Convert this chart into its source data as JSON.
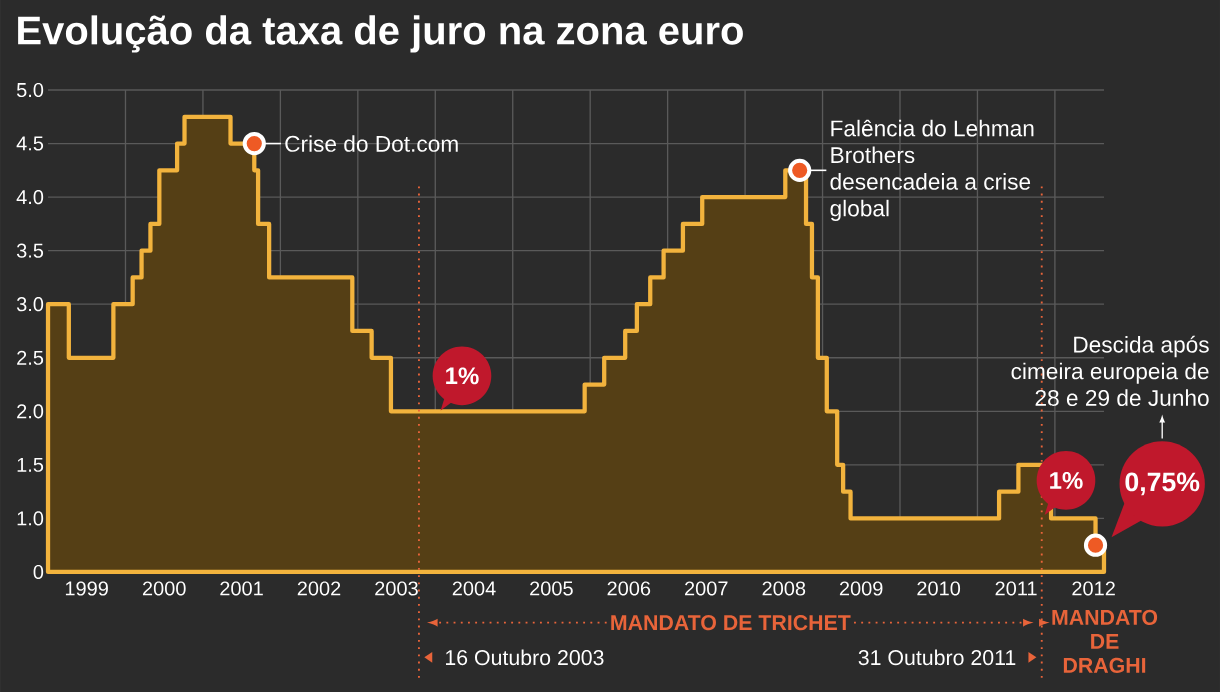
{
  "chart_data": {
    "type": "area",
    "title": "Evolução da taxa de juro na zona euro",
    "x": [
      "1999-01-01",
      "1999-04-09",
      "1999-11-05",
      "2000-02-04",
      "2000-03-17",
      "2000-04-28",
      "2000-06-09",
      "2000-09-01",
      "2000-10-06",
      "2001-05-11",
      "2001-08-31",
      "2001-09-18",
      "2001-11-09",
      "2002-12-06",
      "2003-03-07",
      "2003-06-06",
      "2005-12-06",
      "2006-03-08",
      "2006-06-15",
      "2006-08-09",
      "2006-10-11",
      "2006-12-13",
      "2007-03-14",
      "2007-06-13",
      "2008-07-09",
      "2008-10-15",
      "2008-11-12",
      "2008-12-10",
      "2009-01-21",
      "2009-03-11",
      "2009-04-08",
      "2009-05-13",
      "2011-04-13",
      "2011-07-13",
      "2011-11-09",
      "2011-12-14",
      "2012-07-11",
      "2012-08-20"
    ],
    "series": [
      {
        "color": "#f2b33d",
        "values": [
          3.0,
          2.5,
          3.0,
          3.25,
          3.5,
          3.75,
          4.25,
          4.5,
          4.75,
          4.5,
          4.25,
          3.75,
          3.25,
          2.75,
          2.5,
          2.0,
          2.25,
          2.5,
          2.75,
          3.0,
          3.25,
          3.5,
          3.75,
          4.0,
          4.25,
          3.75,
          3.25,
          2.5,
          2.0,
          1.5,
          1.25,
          1.0,
          1.25,
          1.5,
          1.25,
          1.0,
          0.75,
          0.75
        ]
      }
    ],
    "xlim": [
      "1999-01-01",
      "2012-08-20"
    ],
    "xticks": [
      {
        "value": "2000-01-01",
        "label": null
      },
      {
        "value": "2001-01-01",
        "label": null
      },
      {
        "value": "2002-01-01",
        "label": null
      },
      {
        "value": "2003-01-01",
        "label": null
      },
      {
        "value": "2004-01-01",
        "label": null
      },
      {
        "value": "2005-01-01",
        "label": null
      },
      {
        "value": "2006-01-01",
        "label": null
      },
      {
        "value": "2007-01-01",
        "label": null
      },
      {
        "value": "2008-01-01",
        "label": null
      },
      {
        "value": "2009-01-01",
        "label": null
      },
      {
        "value": "2010-01-01",
        "label": null
      },
      {
        "value": "2011-01-01",
        "label": null
      },
      {
        "value": "2012-01-01",
        "label": null
      },
      {
        "value": "1999-07-02",
        "label": "1999"
      },
      {
        "value": "2000-07-02",
        "label": "2000"
      },
      {
        "value": "2001-07-02",
        "label": "2001"
      },
      {
        "value": "2002-07-02",
        "label": "2002"
      },
      {
        "value": "2003-07-02",
        "label": "2003"
      },
      {
        "value": "2004-07-02",
        "label": "2004"
      },
      {
        "value": "2005-07-02",
        "label": "2005"
      },
      {
        "value": "2006-07-02",
        "label": "2006"
      },
      {
        "value": "2007-07-02",
        "label": "2007"
      },
      {
        "value": "2008-07-02",
        "label": "2008"
      },
      {
        "value": "2009-07-02",
        "label": "2009"
      },
      {
        "value": "2010-07-02",
        "label": "2010"
      },
      {
        "value": "2011-07-02",
        "label": "2011"
      },
      {
        "value": "2012-07-02",
        "label": "2012"
      }
    ],
    "ylim": [
      0.5,
      5.0
    ],
    "yticks": [
      {
        "value": 0.5,
        "label": "0"
      },
      {
        "value": 1.0,
        "label": "1.0"
      },
      {
        "value": 1.5,
        "label": "1.5"
      },
      {
        "value": 2.0,
        "label": "2.0"
      },
      {
        "value": 2.5,
        "label": "2.5"
      },
      {
        "value": 3.0,
        "label": "3.0"
      },
      {
        "value": 3.5,
        "label": "3.5"
      },
      {
        "value": 4.0,
        "label": "4.0"
      },
      {
        "value": 4.5,
        "label": "4.5"
      },
      {
        "value": 5.0,
        "label": "5.0"
      }
    ],
    "grid": true,
    "annotations": [
      {
        "text": "Crise do Dot.com",
        "x": "2001-08-31",
        "y": 4.5
      },
      {
        "text": "Falência do Lehman Brothers desencadeia a crise global",
        "x": "2008-09-15",
        "y": 4.25
      },
      "Descida após cimeira europeia de 28 e 29 de Junho",
      "0,75%",
      "1%",
      "1%",
      "MANDATO DE TRICHET",
      "MANDATO DE DRAGHI"
    ],
    "ref_lines": [
      {
        "axis": "x",
        "value": "2003-10-16",
        "label": "16 Outubro 2003",
        "color": "#e8643a",
        "line_style": "dotted"
      },
      {
        "axis": "x",
        "value": "2011-10-31",
        "label": "31 Outubro 2011",
        "color": "#e8643a",
        "line_style": "dotted"
      }
    ]
  }
}
